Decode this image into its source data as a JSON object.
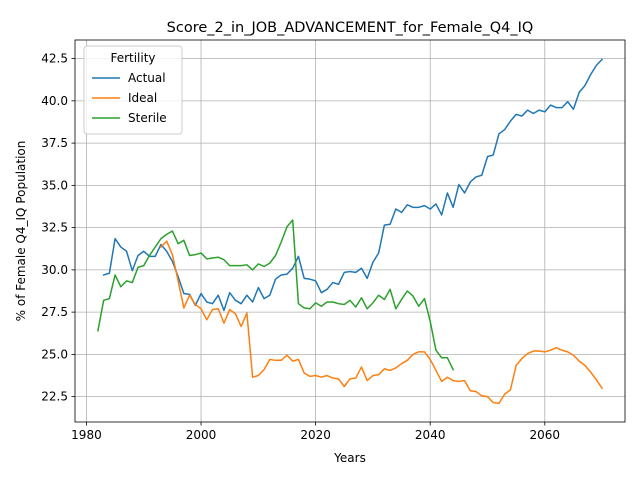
{
  "chart_data": {
    "type": "line",
    "title": "Score_2_in_JOB_ADVANCEMENT_for_Female_Q4_IQ",
    "xlabel": "Years",
    "ylabel": "% of Female Q4_IQ Population",
    "xlim": [
      1978,
      2074
    ],
    "ylim": [
      21.0,
      43.6
    ],
    "xticks": [
      1980,
      2000,
      2020,
      2040,
      2060
    ],
    "yticks": [
      22.5,
      25.0,
      27.5,
      30.0,
      32.5,
      35.0,
      37.5,
      40.0,
      42.5
    ],
    "ytick_labels": [
      "22.5",
      "25.0",
      "27.5",
      "30.0",
      "32.5",
      "35.0",
      "37.5",
      "40.0",
      "42.5"
    ],
    "grid": true,
    "legend": {
      "title": "Fertility",
      "placement": "top-left"
    },
    "series": [
      {
        "name": "Actual",
        "color": "#1f77b4",
        "x": [
          1983,
          1984,
          1985,
          1986,
          1987,
          1988,
          1989,
          1990,
          1991,
          1992,
          1993,
          1994,
          1995,
          1996,
          1997,
          1998,
          1999,
          2000,
          2001,
          2002,
          2003,
          2004,
          2005,
          2006,
          2007,
          2008,
          2009,
          2010,
          2011,
          2012,
          2013,
          2014,
          2015,
          2016,
          2017,
          2018,
          2019,
          2020,
          2021,
          2022,
          2023,
          2024,
          2025,
          2026,
          2027,
          2028,
          2029,
          2030,
          2031,
          2032,
          2033,
          2034,
          2035,
          2036,
          2037,
          2038,
          2039,
          2040,
          2041,
          2042,
          2043,
          2044,
          2045,
          2046,
          2047,
          2048,
          2049,
          2050,
          2051,
          2052,
          2053,
          2054,
          2055,
          2056,
          2057,
          2058,
          2059,
          2060,
          2061,
          2062,
          2063,
          2064,
          2065,
          2066,
          2067,
          2068,
          2069,
          2070
        ],
        "values": [
          29.7,
          29.8,
          31.85,
          31.35,
          31.1,
          29.95,
          30.85,
          31.1,
          30.8,
          30.8,
          31.5,
          31.1,
          30.5,
          29.6,
          28.6,
          28.55,
          27.9,
          28.6,
          28.1,
          28.0,
          28.5,
          27.6,
          28.65,
          28.2,
          28.0,
          28.5,
          28.1,
          28.95,
          28.3,
          28.5,
          29.45,
          29.7,
          29.75,
          30.1,
          30.8,
          29.5,
          29.45,
          29.35,
          28.65,
          28.85,
          29.25,
          29.15,
          29.85,
          29.9,
          29.85,
          30.1,
          29.5,
          30.45,
          31.0,
          32.65,
          32.7,
          33.6,
          33.4,
          33.85,
          33.7,
          33.7,
          33.8,
          33.6,
          33.9,
          33.25,
          34.55,
          33.7,
          35.05,
          34.55,
          35.2,
          35.5,
          35.6,
          36.7,
          36.8,
          38.05,
          38.3,
          38.8,
          39.2,
          39.1,
          39.45,
          39.25,
          39.45,
          39.35,
          39.75,
          39.6,
          39.6,
          39.95,
          39.5,
          40.5,
          40.9,
          41.55,
          42.1,
          42.45
        ]
      },
      {
        "name": "Ideal",
        "color": "#ff7f0e",
        "x": [
          1993,
          1994,
          1995,
          1996,
          1997,
          1998,
          1999,
          2000,
          2001,
          2002,
          2003,
          2004,
          2005,
          2006,
          2007,
          2008,
          2009,
          2010,
          2011,
          2012,
          2013,
          2014,
          2015,
          2016,
          2017,
          2018,
          2019,
          2020,
          2021,
          2022,
          2023,
          2024,
          2025,
          2026,
          2027,
          2028,
          2029,
          2030,
          2031,
          2032,
          2033,
          2034,
          2035,
          2036,
          2037,
          2038,
          2039,
          2040,
          2041,
          2042,
          2043,
          2044,
          2045,
          2046,
          2047,
          2048,
          2049,
          2050,
          2051,
          2052,
          2053,
          2054,
          2055,
          2056,
          2057,
          2058,
          2059,
          2060,
          2061,
          2062,
          2063,
          2064,
          2065,
          2066,
          2067,
          2068,
          2069,
          2070
        ],
        "values": [
          31.35,
          31.7,
          30.9,
          29.35,
          27.75,
          28.5,
          27.95,
          27.7,
          27.05,
          27.65,
          27.7,
          26.85,
          27.65,
          27.4,
          26.65,
          27.45,
          23.65,
          23.75,
          24.1,
          24.7,
          24.65,
          24.65,
          24.95,
          24.6,
          24.7,
          23.9,
          23.7,
          23.75,
          23.65,
          23.75,
          23.6,
          23.55,
          23.1,
          23.55,
          23.6,
          24.25,
          23.45,
          23.75,
          23.8,
          24.15,
          24.05,
          24.2,
          24.45,
          24.65,
          25.0,
          25.15,
          25.15,
          24.7,
          24.05,
          23.4,
          23.65,
          23.45,
          23.4,
          23.45,
          22.85,
          22.8,
          22.55,
          22.5,
          22.15,
          22.1,
          22.65,
          22.9,
          24.35,
          24.75,
          25.05,
          25.2,
          25.2,
          25.15,
          25.25,
          25.4,
          25.25,
          25.15,
          24.95,
          24.6,
          24.35,
          23.95,
          23.5,
          23.0
        ]
      },
      {
        "name": "Sterile",
        "color": "#2ca02c",
        "x": [
          1982,
          1983,
          1984,
          1985,
          1986,
          1987,
          1988,
          1989,
          1990,
          1991,
          1992,
          1993,
          1994,
          1995,
          1996,
          1997,
          1998,
          1999,
          2000,
          2001,
          2002,
          2003,
          2004,
          2005,
          2006,
          2007,
          2008,
          2009,
          2010,
          2011,
          2012,
          2013,
          2014,
          2015,
          2016,
          2017,
          2018,
          2019,
          2020,
          2021,
          2022,
          2023,
          2024,
          2025,
          2026,
          2027,
          2028,
          2029,
          2030,
          2031,
          2032,
          2033,
          2034,
          2035,
          2036,
          2037,
          2038,
          2039,
          2040,
          2041,
          2042,
          2043,
          2044
        ],
        "values": [
          26.4,
          28.2,
          28.3,
          29.7,
          29.0,
          29.35,
          29.25,
          30.15,
          30.25,
          30.85,
          31.35,
          31.85,
          32.1,
          32.3,
          31.55,
          31.75,
          30.85,
          30.9,
          31.0,
          30.65,
          30.7,
          30.75,
          30.6,
          30.25,
          30.25,
          30.25,
          30.3,
          30.0,
          30.35,
          30.2,
          30.4,
          30.85,
          31.65,
          32.55,
          32.95,
          28.0,
          27.75,
          27.7,
          28.05,
          27.85,
          28.1,
          28.1,
          28.0,
          27.95,
          28.2,
          27.8,
          28.35,
          27.7,
          28.05,
          28.5,
          28.25,
          28.85,
          27.7,
          28.25,
          28.75,
          28.45,
          27.85,
          28.3,
          26.95,
          25.25,
          24.8,
          24.8,
          24.1
        ]
      }
    ]
  }
}
